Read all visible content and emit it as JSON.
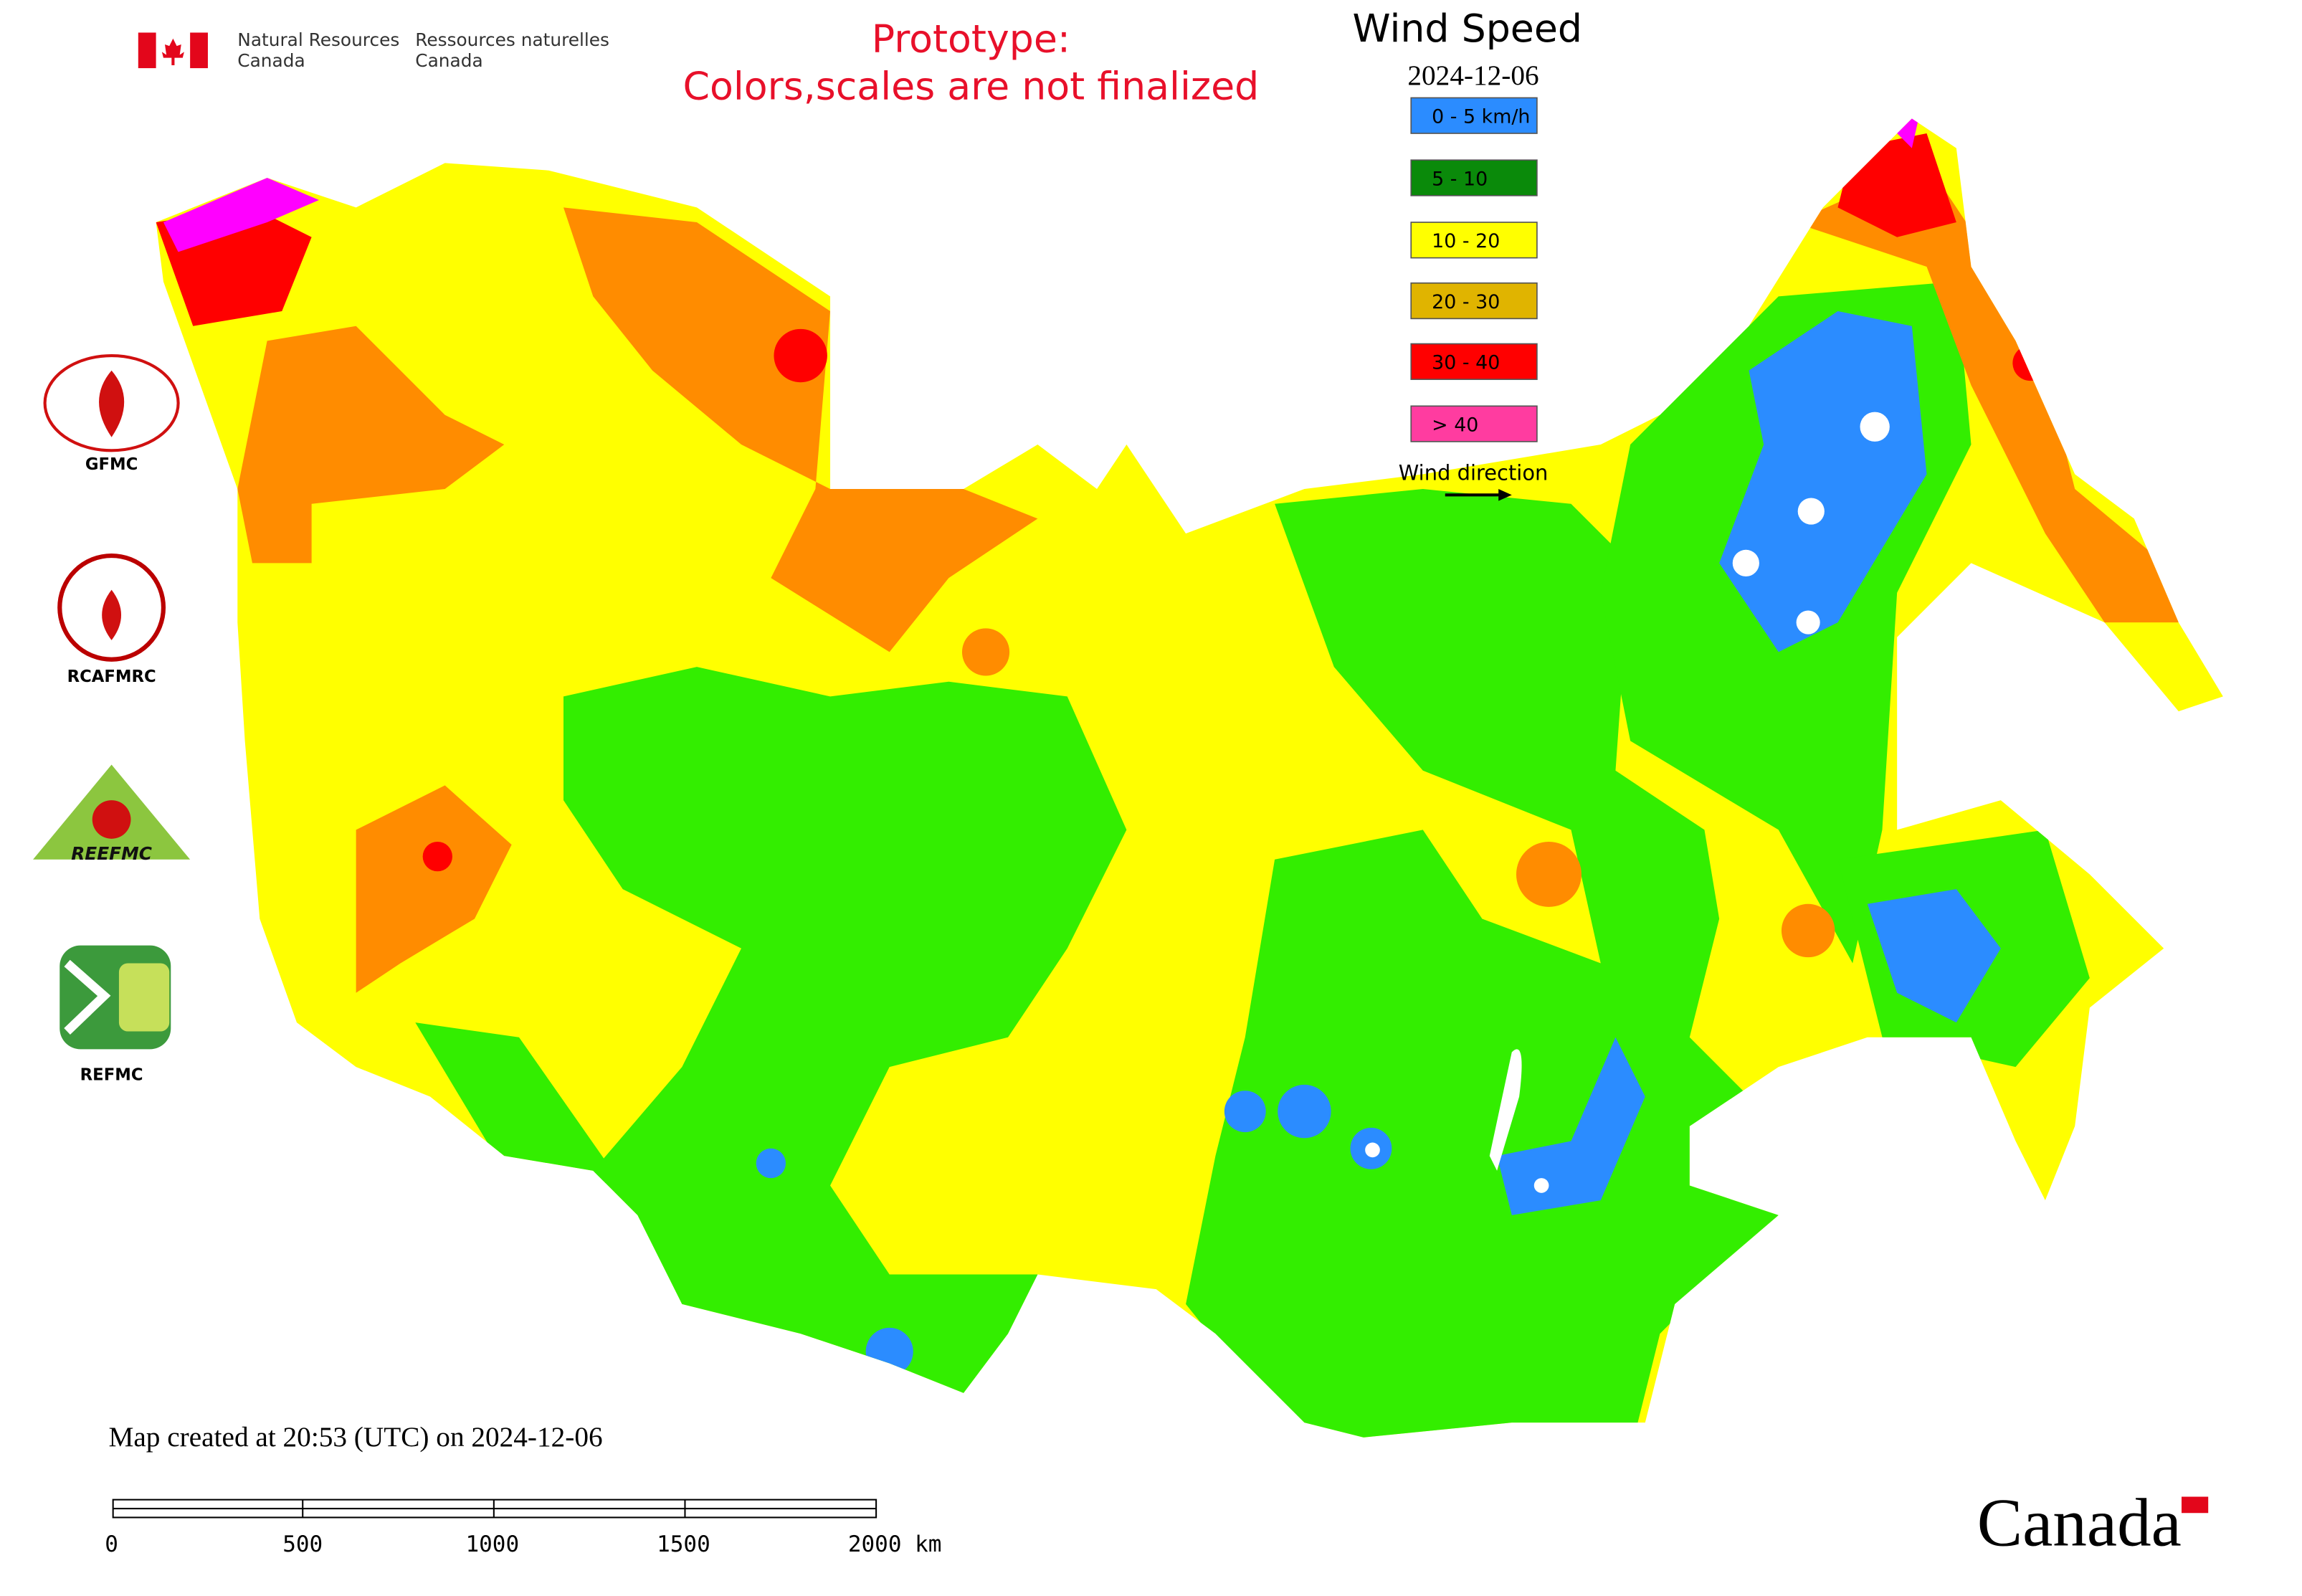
{
  "header": {
    "department_en": [
      "Natural Resources",
      "Canada"
    ],
    "department_fr": [
      "Ressources naturelles",
      "Canada"
    ],
    "notice": [
      "Prototype:",
      "Colors,scales are not finalized"
    ]
  },
  "legend": {
    "title": "Wind Speed",
    "date": "2024-12-06",
    "items": [
      {
        "label": "0 - 5 km/h",
        "color": "#2b8cff"
      },
      {
        "label": "5 - 10",
        "color": "#0a8a0a"
      },
      {
        "label": "10 - 20",
        "color": "#ffff00"
      },
      {
        "label": "20 - 30",
        "color": "#e0b400"
      },
      {
        "label": "30 - 40",
        "color": "#ff0000"
      },
      {
        "label": "> 40",
        "color": "#ff3ca0"
      }
    ],
    "direction_label": "Wind direction"
  },
  "logos": [
    "GFMC",
    "RCAFMRC",
    "REEFMC",
    "REFMC"
  ],
  "footer": {
    "created": "Map created at 20:53 (UTC) on 2024-12-06",
    "scale": [
      "0",
      "500",
      "1000",
      "1500",
      "2000 km"
    ],
    "wordmark": "Canada"
  }
}
